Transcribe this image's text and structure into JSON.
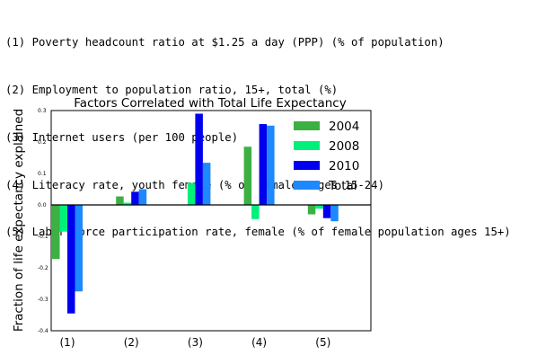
{
  "notes": [
    "(1) Poverty headcount ratio at $1.25 a day (PPP) (% of population)",
    "(2) Employment to population ratio, 15+, total (%)",
    "(3) Internet users (per 100 people)",
    "(4) Literacy rate, youth female (% of females ages 15-24)",
    "(5) Labor force participation rate, female (% of female population ages 15+)"
  ],
  "chart_data": {
    "type": "bar",
    "title": "Factors Correlated with Total Life Expectancy",
    "xlabel": "",
    "ylabel": "Fraction of life expectancy explained",
    "categories": [
      "(1)",
      "(2)",
      "(3)",
      "(4)",
      "(5)"
    ],
    "ylim": [
      -0.4,
      0.3
    ],
    "yticks": [
      "0.3",
      "0.2",
      "0.1",
      "0.0",
      "-0.1",
      "-0.2",
      "-0.3",
      "-0.4"
    ],
    "grid": false,
    "legend_position": "top-right",
    "zero_line": true,
    "series": [
      {
        "name": "2004",
        "color": "#3cb043",
        "values": [
          -0.172,
          0.027,
          0.0,
          0.185,
          -0.03
        ]
      },
      {
        "name": "2008",
        "color": "#00f07a",
        "values": [
          -0.085,
          0.007,
          0.07,
          -0.045,
          -0.012
        ]
      },
      {
        "name": "2010",
        "color": "#0000ee",
        "values": [
          -0.345,
          0.042,
          0.29,
          0.257,
          -0.042
        ]
      },
      {
        "name": "Total",
        "color": "#1e88ff",
        "values": [
          -0.275,
          0.05,
          0.134,
          0.252,
          -0.052
        ]
      }
    ]
  }
}
